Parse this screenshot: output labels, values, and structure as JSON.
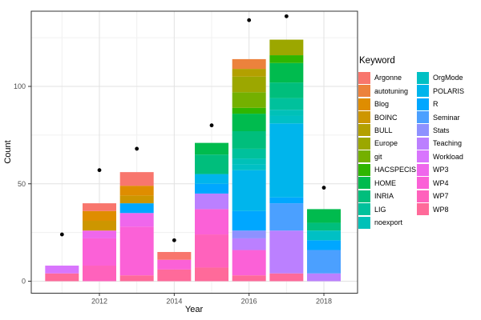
{
  "chart_data": {
    "type": "bar",
    "stacked": true,
    "orientation": "vertical",
    "title": "",
    "xlabel": "Year",
    "ylabel": "Count",
    "legend_title": "Keyword",
    "legend_position": "right",
    "grid": true,
    "ylim": [
      0,
      138
    ],
    "categories": [
      2011,
      2012,
      2013,
      2014,
      2015,
      2016,
      2017,
      2018
    ],
    "x_tick_years": [
      2012,
      2014,
      2016,
      2018
    ],
    "x_tick_labels": [
      "2012",
      "2014",
      "2016",
      "2018"
    ],
    "x_minor_years": [
      2011,
      2013,
      2015,
      2017
    ],
    "y_ticks": [
      0,
      50,
      100
    ],
    "y_minor_ticks": [
      25,
      75,
      125
    ],
    "bar_totals": [
      8,
      40,
      56,
      15,
      71,
      114,
      124,
      37
    ],
    "points_overlay": {
      "description": "black dots above bars",
      "color": "#000000",
      "values": [
        24,
        57,
        68,
        21,
        80,
        134,
        136,
        48
      ]
    },
    "series": [
      {
        "name": "Argonne",
        "color": "#F8766D",
        "values": [
          0,
          4,
          7,
          4,
          0,
          0,
          0,
          0
        ]
      },
      {
        "name": "autotuning",
        "color": "#EC823C",
        "values": [
          0,
          0,
          0,
          0,
          0,
          5,
          0,
          0
        ]
      },
      {
        "name": "Blog",
        "color": "#DF8D00",
        "values": [
          0,
          5,
          5,
          0,
          0,
          0,
          0,
          0
        ]
      },
      {
        "name": "BOINC",
        "color": "#CD9600",
        "values": [
          0,
          5,
          4,
          0,
          0,
          0,
          0,
          0
        ]
      },
      {
        "name": "BULL",
        "color": "#B3A000",
        "values": [
          0,
          0,
          0,
          0,
          0,
          4,
          0,
          0
        ]
      },
      {
        "name": "Europe",
        "color": "#9CA700",
        "values": [
          0,
          0,
          0,
          0,
          0,
          8,
          8,
          0
        ]
      },
      {
        "name": "git",
        "color": "#74B000",
        "values": [
          0,
          0,
          0,
          0,
          0,
          8,
          0,
          0
        ]
      },
      {
        "name": "HACSPECIS",
        "color": "#2FB600",
        "values": [
          0,
          0,
          0,
          0,
          0,
          3,
          4,
          0
        ]
      },
      {
        "name": "HOME",
        "color": "#00BB4E",
        "values": [
          0,
          0,
          0,
          0,
          6,
          9,
          10,
          7
        ]
      },
      {
        "name": "INRIA",
        "color": "#00BE7C",
        "values": [
          0,
          0,
          0,
          0,
          10,
          9,
          8,
          4
        ]
      },
      {
        "name": "LIG",
        "color": "#00C19C",
        "values": [
          0,
          0,
          0,
          0,
          0,
          5,
          6,
          0
        ]
      },
      {
        "name": "noexport",
        "color": "#00C1B8",
        "values": [
          0,
          0,
          0,
          0,
          0,
          3,
          3,
          0
        ]
      },
      {
        "name": "OrgMode",
        "color": "#00C0C4",
        "values": [
          0,
          0,
          0,
          0,
          0,
          3,
          4,
          5
        ]
      },
      {
        "name": "POLARIS",
        "color": "#00B5EC",
        "values": [
          0,
          0,
          0,
          0,
          5,
          21,
          38,
          0
        ]
      },
      {
        "name": "R",
        "color": "#00A7FF",
        "values": [
          0,
          0,
          5,
          0,
          5,
          10,
          3,
          5
        ]
      },
      {
        "name": "Seminar",
        "color": "#4BA0FF",
        "values": [
          0,
          0,
          0,
          0,
          0,
          0,
          14,
          12
        ]
      },
      {
        "name": "Stats",
        "color": "#8E91FF",
        "values": [
          0,
          0,
          0,
          0,
          0,
          4,
          0,
          0
        ]
      },
      {
        "name": "Teaching",
        "color": "#BB80FF",
        "values": [
          0,
          0,
          0,
          0,
          8,
          6,
          22,
          4
        ]
      },
      {
        "name": "Workload",
        "color": "#D875FD",
        "values": [
          4,
          0,
          0,
          0,
          0,
          0,
          0,
          0
        ]
      },
      {
        "name": "WP3",
        "color": "#EF67EC",
        "values": [
          0,
          4,
          7,
          0,
          0,
          0,
          0,
          0
        ]
      },
      {
        "name": "WP4",
        "color": "#FB61D7",
        "values": [
          0,
          14,
          25,
          5,
          13,
          13,
          0,
          0
        ]
      },
      {
        "name": "WP7",
        "color": "#FF62BC",
        "values": [
          0,
          8,
          0,
          0,
          17,
          0,
          0,
          0
        ]
      },
      {
        "name": "WP8",
        "color": "#FF6A9A",
        "values": [
          4,
          0,
          3,
          6,
          7,
          3,
          4,
          0
        ]
      }
    ]
  }
}
